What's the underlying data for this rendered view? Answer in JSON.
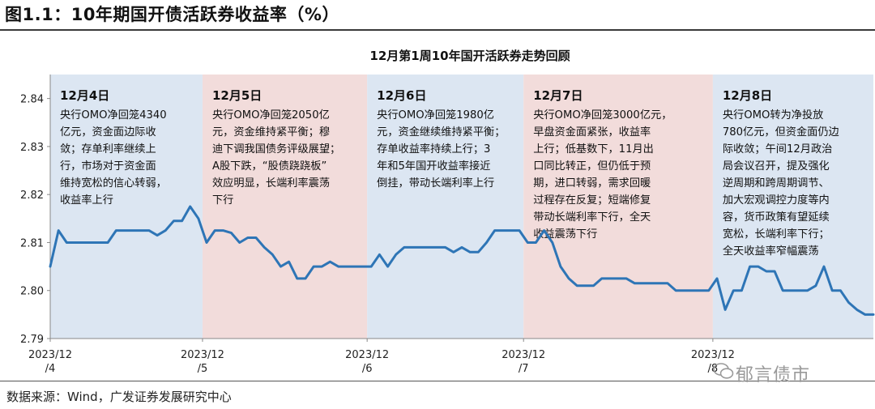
{
  "figure_title": "图1.1：10年期国开债活跃券收益率（%）",
  "source": "数据来源：Wind，广发证券发展研究中心",
  "watermark": "郁言债市",
  "colors": {
    "line": "#2e75b6",
    "band_blue": "#dce6f2",
    "band_pink": "#f2dcdb"
  },
  "chart_data": {
    "type": "line",
    "title": "12月第1周10年国开活跃券走势回顾",
    "xlabel": "",
    "ylabel": "",
    "ylim": [
      2.79,
      2.845
    ],
    "yticks": [
      "2.79",
      "2.80",
      "2.81",
      "2.82",
      "2.83",
      "2.84"
    ],
    "xtick_labels": [
      {
        "line1": "2023/12",
        "line2": "/4"
      },
      {
        "line1": "2023/12",
        "line2": "/5"
      },
      {
        "line1": "2023/12",
        "line2": "/6"
      },
      {
        "line1": "2023/12",
        "line2": "/7"
      },
      {
        "line1": "2023/12",
        "line2": "/8"
      }
    ],
    "series": [
      {
        "values": [
          2.805,
          2.8125,
          2.81,
          2.81,
          2.81,
          2.81,
          2.81,
          2.81,
          2.8125,
          2.8125,
          2.8125,
          2.8125,
          2.8125,
          2.8115,
          2.8125,
          2.8145,
          2.8145,
          2.8175,
          2.815,
          2.81,
          2.8125,
          2.8125,
          2.812,
          2.81,
          2.811,
          2.811,
          2.809,
          2.8075,
          2.805,
          2.806,
          2.8025,
          2.8025,
          2.805,
          2.805,
          2.806,
          2.805,
          2.805,
          2.805,
          2.805,
          2.805,
          2.8075,
          2.805,
          2.8075,
          2.809,
          2.809,
          2.809,
          2.809,
          2.809,
          2.809,
          2.808,
          2.809,
          2.808,
          2.808,
          2.81,
          2.8125,
          2.8125,
          2.8125,
          2.8125,
          2.81,
          2.81,
          2.8125,
          2.81,
          2.805,
          2.8025,
          2.801,
          2.801,
          2.801,
          2.8025,
          2.8025,
          2.8025,
          2.8025,
          2.8015,
          2.8015,
          2.8015,
          2.8015,
          2.8015,
          2.8,
          2.8,
          2.8,
          2.8,
          2.8,
          2.8025,
          2.796,
          2.8,
          2.8,
          2.805,
          2.805,
          2.804,
          2.804,
          2.8,
          2.8,
          2.8,
          2.8,
          2.801,
          2.805,
          2.8,
          2.8,
          2.7975,
          2.796,
          2.795,
          2.795
        ]
      }
    ],
    "day_boundaries": [
      0,
      18.5,
      38.5,
      57.5,
      80.5,
      101
    ],
    "annotations": [
      {
        "date": "12月4日",
        "lines": [
          "央行OMO净回笼4340",
          "亿元，资金面边际收",
          "敛；存单利率继续上",
          "行，市场对于资金面",
          "维持宽松的信心转弱，",
          "收益率上行"
        ]
      },
      {
        "date": "12月5日",
        "lines": [
          "央行OMO净回笼2050亿",
          "元，资金维持紧平衡；穆",
          "迪下调我国债务评级展望；",
          "A股下跌，“股债跷跷板”",
          "效应明显，长端利率震荡",
          "下行"
        ]
      },
      {
        "date": "12月6日",
        "lines": [
          "央行OMO净回笼1980亿",
          "元，资金继续维持紧平衡；",
          "存单收益率持续上行；3",
          "年和5年国开收益率接近",
          "倒挂，带动长端利率上行"
        ]
      },
      {
        "date": "12月7日",
        "lines": [
          "央行OMO净回笼3000亿元，",
          "早盘资金面紧张，收益率",
          "上行；低基数下，11月出",
          "口同比转正，但仍低于预",
          "期，进口转弱，需求回暖",
          "过程存在反复；短端修复",
          "带动长端利率下行，全天",
          "收益震荡下行"
        ]
      },
      {
        "date": "12月8日",
        "lines": [
          "央行OMO转为净投放",
          "780亿元，但资金面仍边",
          "际收敛；午间12月政治",
          "局会议召开，提及强化",
          "逆周期和跨周期调节、",
          "加大宏观调控力度等内",
          "容，货币政策有望延续",
          "宽松，长端利率下行；",
          "全天收益率窄幅震荡"
        ]
      }
    ]
  }
}
